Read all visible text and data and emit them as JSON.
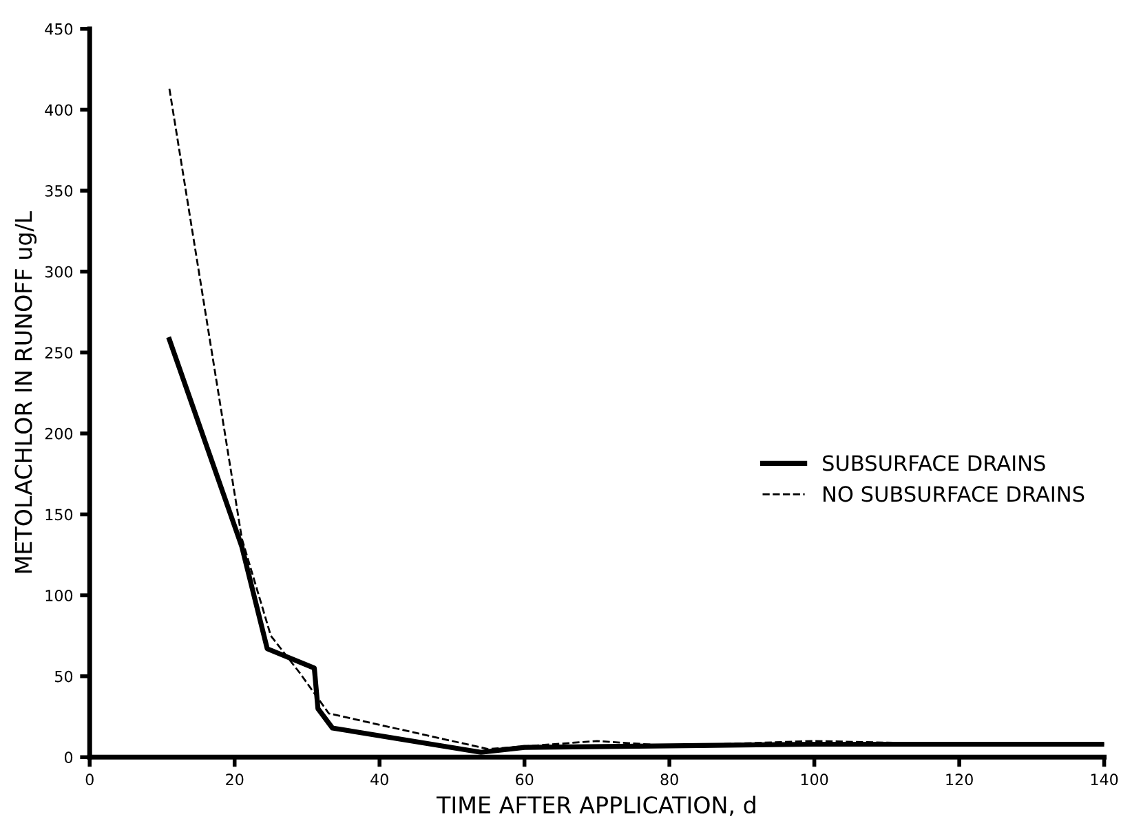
{
  "chart_data": {
    "type": "line",
    "xlabel": "TIME AFTER APPLICATION, d",
    "ylabel": "METOLACHLOR IN RUNOFF ug/L",
    "xlim": [
      0,
      140
    ],
    "ylim": [
      0,
      450
    ],
    "xticks": [
      0,
      20,
      40,
      60,
      80,
      100,
      120,
      140
    ],
    "yticks": [
      0,
      50,
      100,
      150,
      200,
      250,
      300,
      350,
      400,
      450
    ],
    "grid": false,
    "legend": "right",
    "marker": "none",
    "series": [
      {
        "name": "SUBSURFACE DRAINS",
        "color": "#000000",
        "line_style": "solid",
        "x": [
          11,
          21,
          24.5,
          31,
          31.5,
          33.5,
          54,
          60,
          80,
          100,
          120,
          140
        ],
        "values": [
          258,
          130,
          67,
          55,
          30,
          18,
          3,
          6,
          7,
          8,
          8,
          8
        ]
      },
      {
        "name": "NO SUBSURFACE DRAINS",
        "color": "#000000",
        "line_style": "dashed",
        "x": [
          11,
          21,
          25,
          29,
          33,
          55,
          70,
          80,
          100,
          120,
          140
        ],
        "values": [
          413,
          135,
          75,
          52,
          27,
          5,
          10,
          7,
          10,
          8,
          8
        ]
      }
    ]
  }
}
